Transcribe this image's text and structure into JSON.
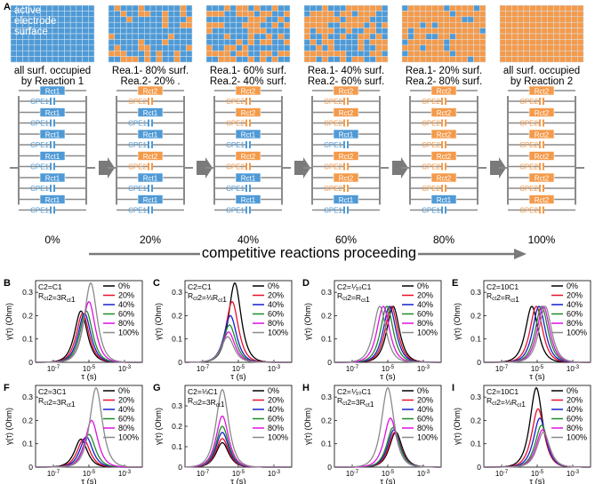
{
  "panel_a": {
    "letter": "A",
    "surface_label": [
      "active",
      "electrode",
      "surface"
    ],
    "states": [
      {
        "caption": [
          "all surf. occupied",
          "by Reaction 1"
        ],
        "fraction_reaction2": 0,
        "percent": "0%",
        "seed": 1
      },
      {
        "caption": [
          "Rea.1- 80% surf.",
          "Rea.2- 20% ."
        ],
        "fraction_reaction2": 0.2,
        "percent": "20%",
        "seed": 7
      },
      {
        "caption": [
          "Rea.1- 60% surf.",
          "Rea.2- 40% surf."
        ],
        "fraction_reaction2": 0.4,
        "percent": "40%",
        "seed": 13
      },
      {
        "caption": [
          "Rea.1- 40% surf.",
          "Rea.2- 60% surf."
        ],
        "fraction_reaction2": 0.6,
        "percent": "60%",
        "seed": 29
      },
      {
        "caption": [
          "Rea.1- 20% surf.",
          "Rea.2- 80% surf."
        ],
        "fraction_reaction2": 0.8,
        "percent": "80%",
        "seed": 41
      },
      {
        "caption": [
          "all surf. occupied",
          "by Reaction 2"
        ],
        "fraction_reaction2": 1,
        "percent": "100%",
        "seed": 3
      }
    ],
    "circuits": [
      [
        "1",
        "1",
        "1",
        "1",
        "1",
        "1"
      ],
      [
        "2",
        "1",
        "1",
        "2",
        "1",
        "1"
      ],
      [
        "2",
        "2",
        "1",
        "2",
        "1",
        "1"
      ],
      [
        "2",
        "2",
        "1",
        "2",
        "2",
        "1"
      ],
      [
        "2",
        "2",
        "2",
        "2",
        "2",
        "1"
      ],
      [
        "2",
        "2",
        "2",
        "2",
        "2",
        "2"
      ]
    ],
    "progress_text": "competitive reactions proceeding",
    "colors": {
      "reaction1": "#4f9ad6",
      "reaction2": "#f49a4a",
      "line": "#8a8a8a",
      "arrow": "#7a7a7a"
    }
  },
  "chart_data": [
    {
      "panel": "B",
      "type": "line",
      "condition": [
        "C2=C1",
        "Rct2=3Rct1"
      ],
      "xlabel": "τ (s)",
      "ylabel": "γ(τ) (Ohm)",
      "ylim": [
        0,
        0.35
      ],
      "xlog": [
        -8,
        -2
      ],
      "yticks": [
        "0",
        "0.1",
        "0.2",
        "0.3"
      ],
      "xticks": [
        "10-7",
        "10-5",
        "10-3"
      ],
      "series": [
        {
          "name": "0%",
          "peak_log_tau": -5.45,
          "peak": 0.22
        },
        {
          "name": "20%",
          "peak_log_tau": -5.35,
          "peak": 0.21
        },
        {
          "name": "40%",
          "peak_log_tau": -5.25,
          "peak": 0.21
        },
        {
          "name": "60%",
          "peak_log_tau": -5.15,
          "peak": 0.22
        },
        {
          "name": "80%",
          "peak_log_tau": -5.0,
          "peak": 0.26
        },
        {
          "name": "100%",
          "peak_log_tau": -4.9,
          "peak": 0.34
        }
      ]
    },
    {
      "panel": "C",
      "type": "line",
      "condition": [
        "C2=C1",
        "Rct2=⅓Rct1"
      ],
      "xlabel": "τ (s)",
      "ylabel": "γ(τ) (Ohm)",
      "ylim": [
        0,
        0.35
      ],
      "xlog": [
        -8,
        -2
      ],
      "yticks": [
        "0",
        "0.1",
        "0.2",
        "0.3"
      ],
      "xticks": [
        "10-7",
        "10-5",
        "10-3"
      ],
      "series": [
        {
          "name": "0%",
          "peak_log_tau": -5.2,
          "peak": 0.34
        },
        {
          "name": "20%",
          "peak_log_tau": -5.35,
          "peak": 0.26
        },
        {
          "name": "40%",
          "peak_log_tau": -5.45,
          "peak": 0.2
        },
        {
          "name": "60%",
          "peak_log_tau": -5.5,
          "peak": 0.16
        },
        {
          "name": "80%",
          "peak_log_tau": -5.55,
          "peak": 0.13
        },
        {
          "name": "100%",
          "peak_log_tau": -5.6,
          "peak": 0.11
        }
      ]
    },
    {
      "panel": "D",
      "type": "line",
      "condition": [
        "C2=⅒C1",
        "Rct2=Rct1"
      ],
      "xlabel": "τ (s)",
      "ylabel": "γ(τ) (Ohm)",
      "ylim": [
        0,
        0.35
      ],
      "xlog": [
        -8,
        -2
      ],
      "yticks": [
        "0",
        "0.1",
        "0.2",
        "0.3"
      ],
      "xticks": [
        "10-7",
        "10-5",
        "10-3"
      ],
      "series": [
        {
          "name": "0%",
          "peak_log_tau": -4.7,
          "peak": 0.24
        },
        {
          "name": "20%",
          "peak_log_tau": -4.8,
          "peak": 0.24
        },
        {
          "name": "40%",
          "peak_log_tau": -4.9,
          "peak": 0.24
        },
        {
          "name": "60%",
          "peak_log_tau": -5.05,
          "peak": 0.24
        },
        {
          "name": "80%",
          "peak_log_tau": -5.25,
          "peak": 0.24
        },
        {
          "name": "100%",
          "peak_log_tau": -5.45,
          "peak": 0.24
        }
      ]
    },
    {
      "panel": "E",
      "type": "line",
      "condition": [
        "C2=10C1",
        "Rct2=Rct1"
      ],
      "xlabel": "τ (s)",
      "ylabel": "γ(τ) (Ohm)",
      "ylim": [
        0,
        0.35
      ],
      "xlog": [
        -8,
        -2
      ],
      "yticks": [
        "0",
        "0.1",
        "0.2",
        "0.3"
      ],
      "xticks": [
        "10-7",
        "10-5",
        "10-3"
      ],
      "series": [
        {
          "name": "0%",
          "peak_log_tau": -5.3,
          "peak": 0.24
        },
        {
          "name": "20%",
          "peak_log_tau": -5.05,
          "peak": 0.24
        },
        {
          "name": "40%",
          "peak_log_tau": -4.9,
          "peak": 0.24
        },
        {
          "name": "60%",
          "peak_log_tau": -4.75,
          "peak": 0.24
        },
        {
          "name": "80%",
          "peak_log_tau": -4.65,
          "peak": 0.24
        },
        {
          "name": "100%",
          "peak_log_tau": -4.55,
          "peak": 0.24
        }
      ]
    },
    {
      "panel": "F",
      "type": "line",
      "condition": [
        "C2=3C1",
        "Rct2=3Rct1"
      ],
      "xlabel": "τ (s)",
      "ylabel": "γ(τ) (Ohm)",
      "ylim": [
        0,
        0.35
      ],
      "xlog": [
        -8,
        -2
      ],
      "yticks": [
        "0",
        "0.1",
        "0.2",
        "0.3"
      ],
      "xticks": [
        "10-7",
        "10-5",
        "10-3"
      ],
      "series": [
        {
          "name": "0%",
          "peak_log_tau": -5.45,
          "peak": 0.12
        },
        {
          "name": "20%",
          "peak_log_tau": -5.3,
          "peak": 0.12
        },
        {
          "name": "40%",
          "peak_log_tau": -5.15,
          "peak": 0.13
        },
        {
          "name": "60%",
          "peak_log_tau": -5.0,
          "peak": 0.14
        },
        {
          "name": "80%",
          "peak_log_tau": -4.85,
          "peak": 0.2
        },
        {
          "name": "100%",
          "peak_log_tau": -4.6,
          "peak": 0.34
        }
      ]
    },
    {
      "panel": "G",
      "type": "line",
      "condition": [
        "C2=⅓C1",
        "Rct2=3Rct1"
      ],
      "xlabel": "τ (s)",
      "ylabel": "γ(τ) (Ohm)",
      "ylim": [
        0,
        0.4
      ],
      "xlog": [
        -8,
        -2
      ],
      "yticks": [
        "0",
        "0.1",
        "0.2",
        "0.3"
      ],
      "xticks": [
        "10-7",
        "10-5",
        "10-3"
      ],
      "series": [
        {
          "name": "0%",
          "peak_log_tau": -5.9,
          "peak": 0.12
        },
        {
          "name": "20%",
          "peak_log_tau": -5.9,
          "peak": 0.14
        },
        {
          "name": "40%",
          "peak_log_tau": -5.9,
          "peak": 0.17
        },
        {
          "name": "60%",
          "peak_log_tau": -5.9,
          "peak": 0.2
        },
        {
          "name": "80%",
          "peak_log_tau": -5.9,
          "peak": 0.25
        },
        {
          "name": "100%",
          "peak_log_tau": -5.9,
          "peak": 0.38
        }
      ]
    },
    {
      "panel": "H",
      "type": "line",
      "condition": [
        "C2=⅒C1",
        "Rct2=3Rct1"
      ],
      "xlabel": "τ (s)",
      "ylabel": "γ(τ) (Ohm)",
      "ylim": [
        0,
        0.35
      ],
      "xlog": [
        -8,
        -2
      ],
      "yticks": [
        "0",
        "0.1",
        "0.2",
        "0.3"
      ],
      "xticks": [
        "10-7",
        "10-5",
        "10-3"
      ],
      "series": [
        {
          "name": "0%",
          "peak_log_tau": -4.55,
          "peak": 0.15
        },
        {
          "name": "20%",
          "peak_log_tau": -4.6,
          "peak": 0.15
        },
        {
          "name": "40%",
          "peak_log_tau": -4.65,
          "peak": 0.16
        },
        {
          "name": "60%",
          "peak_log_tau": -4.7,
          "peak": 0.17
        },
        {
          "name": "80%",
          "peak_log_tau": -4.85,
          "peak": 0.21
        },
        {
          "name": "100%",
          "peak_log_tau": -5.0,
          "peak": 0.34
        }
      ]
    },
    {
      "panel": "I",
      "type": "line",
      "condition": [
        "C2=10C1",
        "Rct2=⅓Rct1"
      ],
      "xlabel": "τ (s)",
      "ylabel": "γ(τ) (Ohm)",
      "ylim": [
        0,
        0.35
      ],
      "xlog": [
        -8,
        -2
      ],
      "yticks": [
        "0",
        "0.1",
        "0.2",
        "0.3"
      ],
      "xticks": [
        "10-7",
        "10-5",
        "10-3"
      ],
      "series": [
        {
          "name": "0%",
          "peak_log_tau": -5.05,
          "peak": 0.34
        },
        {
          "name": "20%",
          "peak_log_tau": -4.95,
          "peak": 0.25
        },
        {
          "name": "40%",
          "peak_log_tau": -4.85,
          "peak": 0.21
        },
        {
          "name": "60%",
          "peak_log_tau": -4.75,
          "peak": 0.18
        },
        {
          "name": "80%",
          "peak_log_tau": -4.7,
          "peak": 0.16
        },
        {
          "name": "100%",
          "peak_log_tau": -4.65,
          "peak": 0.15
        }
      ]
    }
  ],
  "series_colors": [
    "#000000",
    "#e8102a",
    "#1520c8",
    "#1e8a26",
    "#e010e0",
    "#8a8a8a"
  ]
}
